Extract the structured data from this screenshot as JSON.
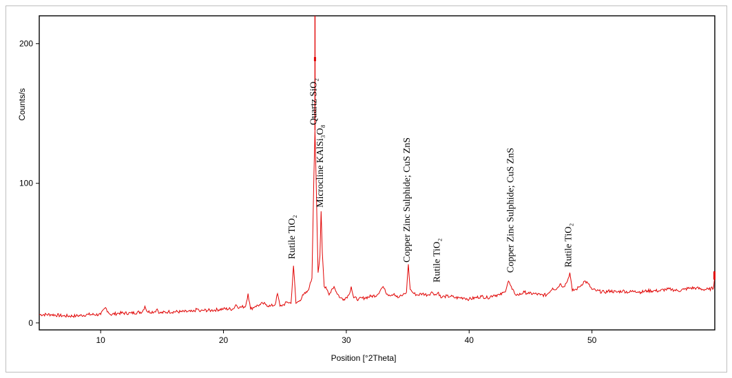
{
  "chart_data": {
    "type": "line",
    "title": "",
    "xlabel": "Position [°2Theta]",
    "ylabel": "Counts/s",
    "xlim": [
      5,
      60
    ],
    "ylim": [
      -5,
      220
    ],
    "x_ticks": [
      10,
      20,
      30,
      40,
      50
    ],
    "y_ticks": [
      0,
      100,
      200
    ],
    "grid": false,
    "series": [
      {
        "color": "#e00000",
        "x": [
          5.0,
          6.0,
          7.0,
          8.0,
          9.0,
          10.0,
          10.4,
          10.6,
          10.8,
          11.5,
          12.5,
          13.4,
          13.6,
          13.8,
          14.4,
          14.6,
          14.8,
          15.5,
          16.5,
          17.5,
          17.9,
          18.1,
          18.3,
          19.0,
          20.0,
          20.8,
          21.0,
          21.3,
          21.8,
          22.0,
          22.2,
          22.6,
          23.0,
          23.2,
          23.5,
          23.8,
          24.2,
          24.4,
          24.6,
          24.9,
          25.2,
          25.5,
          25.7,
          25.9,
          26.2,
          26.5,
          26.8,
          27.0,
          27.2,
          27.35,
          27.45,
          27.55,
          27.7,
          27.85,
          27.95,
          28.05,
          28.2,
          28.4,
          28.6,
          28.8,
          29.0,
          29.2,
          29.5,
          29.8,
          30.2,
          30.4,
          30.6,
          31.0,
          31.5,
          32.0,
          32.5,
          32.8,
          33.0,
          33.2,
          33.5,
          33.9,
          34.2,
          34.6,
          34.9,
          35.05,
          35.2,
          35.5,
          35.8,
          36.2,
          36.6,
          37.0,
          37.3,
          37.5,
          37.7,
          38.0,
          38.5,
          38.9,
          39.2,
          39.6,
          40.0,
          40.5,
          41.0,
          41.5,
          42.0,
          42.5,
          42.9,
          43.2,
          43.5,
          43.7,
          44.0,
          44.5,
          44.9,
          45.3,
          45.8,
          46.3,
          46.8,
          47.1,
          47.4,
          47.7,
          48.0,
          48.2,
          48.4,
          48.7,
          49.0,
          49.4,
          49.7,
          50.0,
          50.4,
          51.0,
          51.5,
          52.0,
          52.5,
          53.0,
          53.5,
          54.0,
          54.5,
          55.0,
          55.5,
          56.0,
          56.5,
          57.0,
          57.5,
          58.0,
          58.5,
          59.0,
          59.5,
          59.9,
          60.0
        ],
        "y": [
          6,
          6,
          5,
          5,
          6,
          6,
          11,
          8,
          6,
          7,
          7,
          8,
          12,
          8,
          8,
          10,
          7,
          8,
          8,
          8,
          10,
          8,
          9,
          9,
          10,
          10,
          13,
          11,
          12,
          21,
          10,
          12,
          13,
          14,
          13,
          12,
          13,
          21,
          12,
          13,
          15,
          14,
          41,
          14,
          16,
          20,
          22,
          26,
          32,
          100,
          138,
          100,
          36,
          48,
          80,
          50,
          26,
          24,
          20,
          24,
          26,
          22,
          18,
          17,
          20,
          26,
          18,
          17,
          18,
          19,
          20,
          24,
          26,
          22,
          20,
          21,
          18,
          20,
          22,
          42,
          24,
          21,
          20,
          21,
          20,
          22,
          20,
          22,
          18,
          19,
          19,
          18,
          18,
          18,
          17,
          18,
          19,
          18,
          20,
          20,
          22,
          30,
          24,
          21,
          20,
          22,
          21,
          21,
          20,
          20,
          25,
          24,
          28,
          26,
          30,
          36,
          23,
          24,
          26,
          30,
          28,
          24,
          23,
          22,
          23,
          22,
          23,
          22,
          23,
          22,
          23,
          23,
          23,
          24,
          24,
          23,
          24,
          25,
          25,
          24,
          24,
          25,
          34
        ]
      }
    ],
    "spike": {
      "x": 27.45,
      "y_top": 220,
      "y_mark": 188
    },
    "annotations": [
      {
        "text": "Rutile TiO₂",
        "x": 25.7
      },
      {
        "text": "Quartz SiO₂",
        "x": 27.45
      },
      {
        "text": "Microcline  KAlSi₃O₈",
        "x": 28.0
      },
      {
        "text": "Copper Zinc Sulphide; CuS  ZnS",
        "x": 35.05
      },
      {
        "text": "Rutile TiO₂",
        "x": 37.5
      },
      {
        "text": "Copper Zinc Sulphide; CuS  ZnS",
        "x": 43.5
      },
      {
        "text": "Rutile TiO₂",
        "x": 48.2
      }
    ]
  }
}
